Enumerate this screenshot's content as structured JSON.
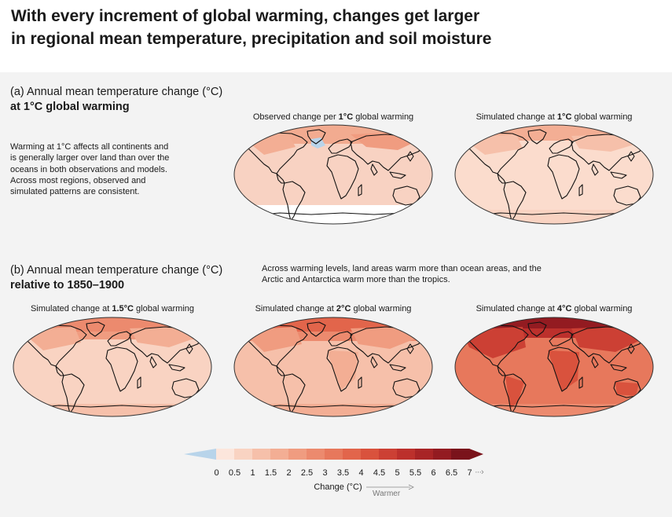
{
  "title_line1": "With every increment of global warming, changes get larger",
  "title_line2": "in regional mean temperature, precipitation and soil moisture",
  "section_a": {
    "label_part1": "(a) Annual mean temperature change (°C)",
    "label_part2": "at 1°C global warming",
    "description": [
      "Warming at 1°C affects all continents and",
      "is generally larger over land than over the",
      "oceans in both observations and models.",
      "Across most regions, observed and",
      "simulated patterns are consistent."
    ],
    "maps": [
      {
        "pre": "Observed change per ",
        "bold": "1°C",
        "post": " global warming"
      },
      {
        "pre": "Simulated change at ",
        "bold": "1°C",
        "post": " global warming"
      }
    ]
  },
  "section_b": {
    "label_part1": "(b) Annual mean temperature change (°C)",
    "label_part2": "relative to 1850–1900",
    "description": [
      "Across warming levels, land areas warm more than ocean areas, and the",
      "Arctic and Antarctica warm more than the tropics."
    ],
    "maps": [
      {
        "pre": "Simulated change at ",
        "bold": "1.5°C",
        "post": " global warming"
      },
      {
        "pre": "Simulated change at ",
        "bold": "2°C",
        "post": " global warming"
      },
      {
        "pre": "Simulated change at ",
        "bold": "4°C",
        "post": " global warming"
      }
    ]
  },
  "legend": {
    "ticks": [
      "0",
      "0.5",
      "1",
      "1.5",
      "2",
      "2.5",
      "3",
      "3.5",
      "4",
      "4.5",
      "5",
      "5.5",
      "6",
      "6.5",
      "7"
    ],
    "title": "Change (°C)",
    "arrow_label": "Warmer",
    "colors": [
      "#b8d4ea",
      "#fce6dc",
      "#f9d3c2",
      "#f6c0aa",
      "#f3ae94",
      "#f09c80",
      "#ec8a6e",
      "#e7785c",
      "#e2654b",
      "#d9523d",
      "#cc4034",
      "#bc302c",
      "#a82426",
      "#931b21",
      "#7a131b"
    ]
  }
}
